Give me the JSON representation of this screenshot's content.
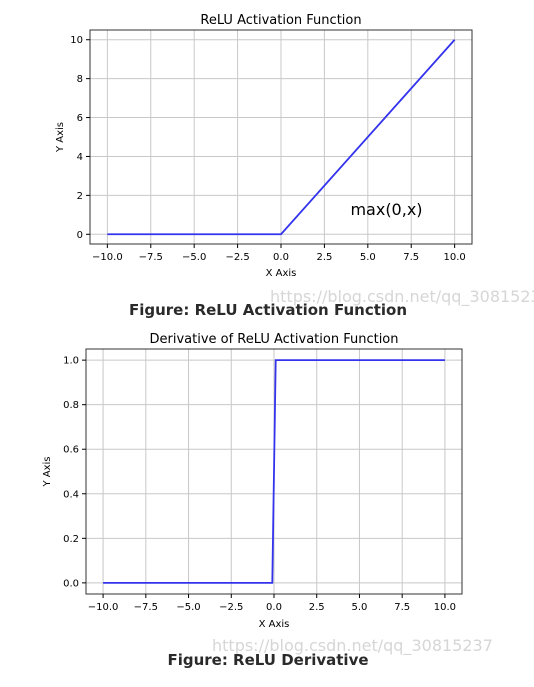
{
  "chart_data": [
    {
      "type": "line",
      "title": "ReLU Activation Function",
      "xlabel": "X Axis",
      "ylabel": "Y Axis",
      "xlim": [
        -11,
        11
      ],
      "ylim": [
        -0.5,
        10.5
      ],
      "xticks": [
        -10.0,
        -7.5,
        -5.0,
        -2.5,
        0.0,
        2.5,
        5.0,
        7.5,
        10.0
      ],
      "xtick_labels": [
        "−10.0",
        "−7.5",
        "−5.0",
        "−2.5",
        "0.0",
        "2.5",
        "5.0",
        "7.5",
        "10.0"
      ],
      "yticks": [
        0,
        2,
        4,
        6,
        8,
        10
      ],
      "ytick_labels": [
        "0",
        "2",
        "4",
        "6",
        "8",
        "10"
      ],
      "grid": true,
      "series": [
        {
          "color": "#3333ee",
          "x": [
            -10,
            0,
            10
          ],
          "y": [
            0,
            0,
            10
          ]
        }
      ],
      "annotations": [
        {
          "text": "max(0,x)",
          "x": 4,
          "y": 1
        }
      ]
    },
    {
      "type": "line",
      "title": "Derivative of ReLU Activation Function",
      "xlabel": "X Axis",
      "ylabel": "Y Axis",
      "xlim": [
        -11,
        11
      ],
      "ylim": [
        -0.05,
        1.05
      ],
      "xticks": [
        -10.0,
        -7.5,
        -5.0,
        -2.5,
        0.0,
        2.5,
        5.0,
        7.5,
        10.0
      ],
      "xtick_labels": [
        "−10.0",
        "−7.5",
        "−5.0",
        "−2.5",
        "0.0",
        "2.5",
        "5.0",
        "7.5",
        "10.0"
      ],
      "yticks": [
        0.0,
        0.2,
        0.4,
        0.6,
        0.8,
        1.0
      ],
      "ytick_labels": [
        "0.0",
        "0.2",
        "0.4",
        "0.6",
        "0.8",
        "1.0"
      ],
      "grid": true,
      "series": [
        {
          "color": "#3333ee",
          "x": [
            -10,
            -0.1,
            0.1,
            10
          ],
          "y": [
            0,
            0,
            1,
            1
          ]
        }
      ],
      "annotations": []
    }
  ],
  "captions": [
    "Figure: ReLU Activation Function",
    "Figure: ReLU Derivative"
  ],
  "watermark": "https://blog.csdn.net/qq_30815237"
}
